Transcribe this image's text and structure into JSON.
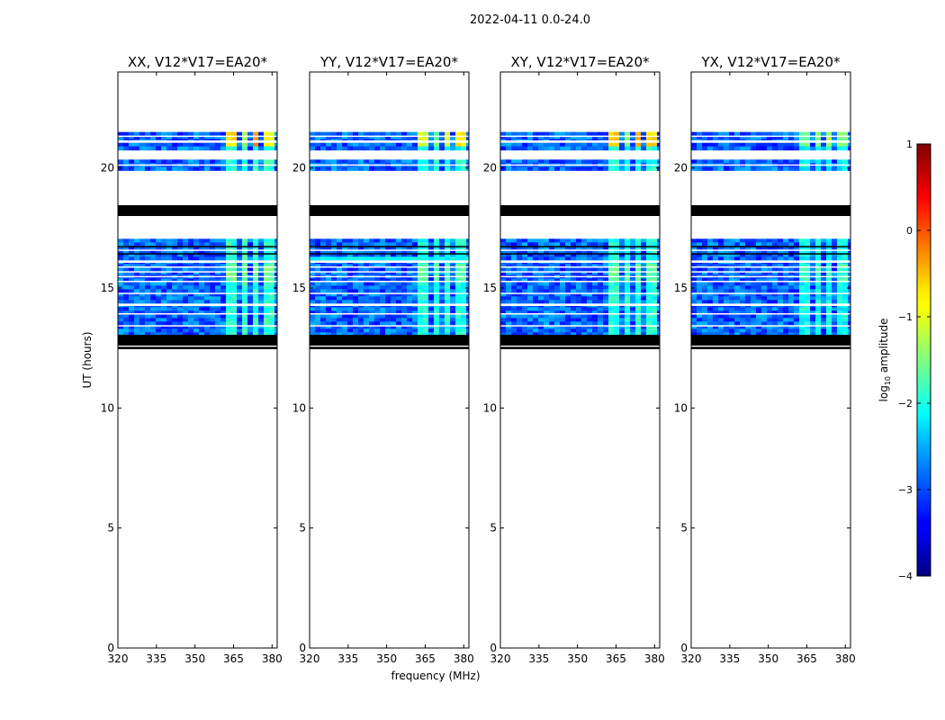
{
  "figure_title": "2022-04-11 0.0-24.0",
  "colormap": "jet",
  "chart_data": {
    "type": "heatmap",
    "shared": {
      "xlabel": "frequency (MHz)",
      "ylabel": "UT (hours)",
      "xlim": [
        320,
        382
      ],
      "ylim": [
        0,
        24
      ],
      "xticks": [
        320,
        335,
        350,
        365,
        380
      ],
      "yticks": [
        0,
        5,
        10,
        15,
        20
      ],
      "colorbar": {
        "label_prefix": "log",
        "label_sub": "10",
        "label_suffix": " amplitude",
        "range": [
          -4,
          1
        ],
        "ticks": [
          1,
          0,
          -1,
          -2,
          -3,
          -4
        ],
        "tick_labels": [
          "1",
          "0",
          "−1",
          "−2",
          "−3",
          "−4"
        ]
      },
      "data_blocks_ut": [
        {
          "from": 12.8,
          "to": 17.05,
          "base": -2.9
        },
        {
          "from": 19.95,
          "to": 20.35,
          "base": -2.9
        },
        {
          "from": 20.9,
          "to": 21.5,
          "base": -2.9
        }
      ],
      "flagged_black_ut": [
        {
          "from": 12.45,
          "to": 12.55
        },
        {
          "from": 12.6,
          "to": 13.05
        },
        {
          "from": 18.0,
          "to": 18.45
        },
        {
          "from": 16.7,
          "to": 16.75
        },
        {
          "from": 16.4,
          "to": 16.45
        }
      ],
      "gaps_white_ut": [
        {
          "from": 13.4,
          "to": 13.45
        },
        {
          "from": 13.9,
          "to": 13.95
        },
        {
          "from": 14.25,
          "to": 14.35
        },
        {
          "from": 14.75,
          "to": 14.8
        },
        {
          "from": 15.25,
          "to": 15.3
        },
        {
          "from": 15.45,
          "to": 15.5
        },
        {
          "from": 15.65,
          "to": 15.7
        },
        {
          "from": 15.85,
          "to": 15.9
        },
        {
          "from": 16.05,
          "to": 16.15
        },
        {
          "from": 16.55,
          "to": 16.6
        },
        {
          "from": 20.1,
          "to": 20.15
        },
        {
          "from": 21.05,
          "to": 21.15
        },
        {
          "from": 21.3,
          "to": 21.35
        }
      ],
      "bright_channels_mhz": [
        {
          "from": 363,
          "to": 366
        },
        {
          "from": 368,
          "to": 370
        },
        {
          "from": 372,
          "to": 375
        },
        {
          "from": 377,
          "to": 380
        }
      ]
    },
    "panels": [
      {
        "title": "XX, V12*V17=EA20*",
        "rfi_levels": [
          -0.7,
          -1.3,
          -0.3,
          -0.9
        ],
        "rfi_low": -1.9,
        "cyan_band_ut": null
      },
      {
        "title": "YY, V12*V17=EA20*",
        "rfi_levels": [
          -1.1,
          -1.6,
          -1.0,
          -0.8
        ],
        "rfi_low": -2.0,
        "cyan_band_ut": {
          "from": 16.15,
          "to": 16.3
        }
      },
      {
        "title": "XY, V12*V17=EA20*",
        "rfi_levels": [
          -0.6,
          -1.4,
          -0.5,
          -0.7
        ],
        "rfi_low": -2.0,
        "cyan_band_ut": null
      },
      {
        "title": "YX, V12*V17=EA20*",
        "rfi_levels": [
          -1.6,
          -1.5,
          -1.3,
          -1.5
        ],
        "rfi_low": -2.1,
        "cyan_band_ut": null
      }
    ]
  }
}
